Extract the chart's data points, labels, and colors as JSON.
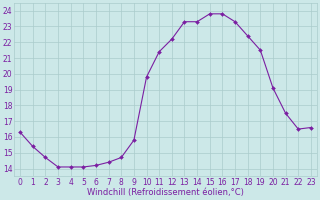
{
  "x": [
    0,
    1,
    2,
    3,
    4,
    5,
    6,
    7,
    8,
    9,
    10,
    11,
    12,
    13,
    14,
    15,
    16,
    17,
    18,
    19,
    20,
    21,
    22,
    23
  ],
  "y": [
    16.3,
    15.4,
    14.7,
    14.1,
    14.1,
    14.1,
    14.2,
    14.4,
    14.7,
    15.8,
    19.8,
    21.4,
    22.2,
    23.3,
    23.3,
    23.8,
    23.8,
    23.3,
    22.4,
    21.5,
    19.1,
    17.5,
    16.5,
    16.6
  ],
  "line_color": "#7b1fa2",
  "marker": "D",
  "marker_size": 2.0,
  "bg_color": "#cce8e8",
  "grid_color": "#aacccc",
  "xlabel": "Windchill (Refroidissement éolien,°C)",
  "yticks": [
    14,
    15,
    16,
    17,
    18,
    19,
    20,
    21,
    22,
    23,
    24
  ],
  "xticks": [
    0,
    1,
    2,
    3,
    4,
    5,
    6,
    7,
    8,
    9,
    10,
    11,
    12,
    13,
    14,
    15,
    16,
    17,
    18,
    19,
    20,
    21,
    22,
    23
  ],
  "xlim": [
    -0.5,
    23.5
  ],
  "ylim": [
    13.5,
    24.5
  ],
  "xlabel_color": "#7b1fa2",
  "tick_color": "#7b1fa2",
  "tick_fontsize": 5.5,
  "xlabel_fontsize": 6.0,
  "linewidth": 0.8
}
